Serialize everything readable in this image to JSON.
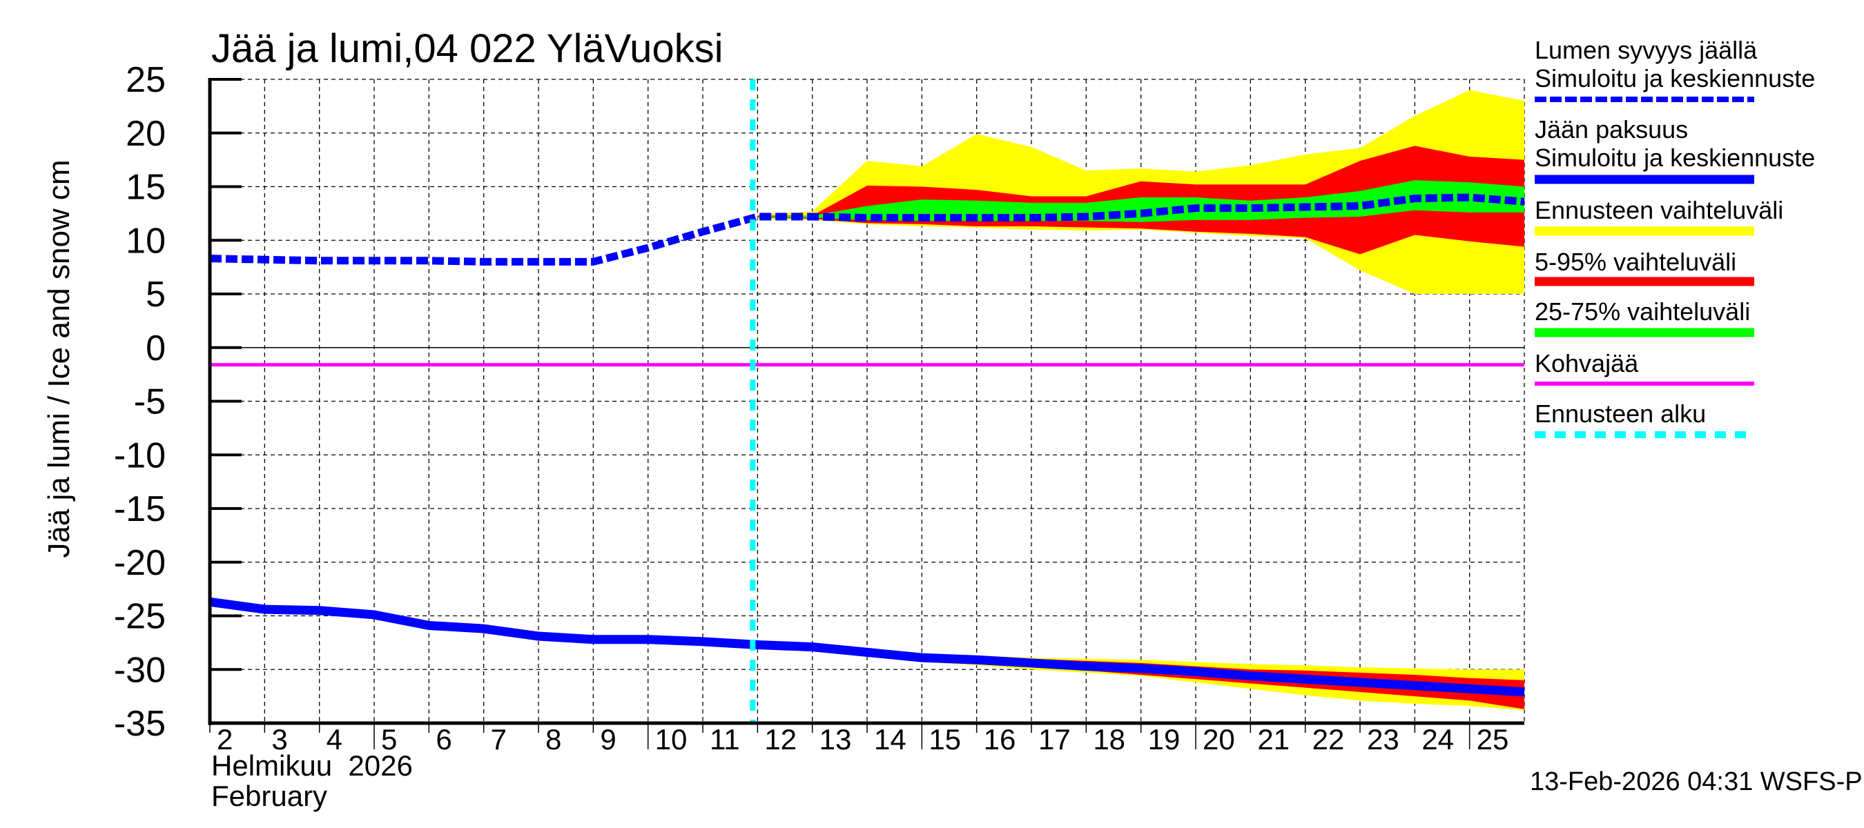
{
  "title": "Jää ja lumi,04 022 YläVuoksi",
  "timestamp": "13-Feb-2026 04:31 WSFS-P",
  "x_axis": {
    "month_fi": "Helmikuu  2026",
    "month_en": "February"
  },
  "y_axis": {
    "label": "Jää ja lumi / Ice and snow    cm"
  },
  "legend": [
    {
      "label": "Lumen syvyys jäällä",
      "sublabel": "Simuloitu ja keskiennuste",
      "color": "#0000ff",
      "style": "dashed-thick"
    },
    {
      "label": "Jään paksuus",
      "sublabel": "Simuloitu ja keskiennuste",
      "color": "#0000ff",
      "style": "solid-thick"
    },
    {
      "label": "Ennusteen vaihteluväli",
      "color": "#ffff00",
      "style": "band"
    },
    {
      "label": "5-95% vaihteluväli",
      "color": "#ff0000",
      "style": "band"
    },
    {
      "label": "25-75% vaihteluväli",
      "color": "#00ff00",
      "style": "band"
    },
    {
      "label": "Kohvajää",
      "color": "#ff00ff",
      "style": "solid-thin"
    },
    {
      "label": "Ennusteen alku",
      "color": "#00ffff",
      "style": "dashed"
    }
  ],
  "chart_data": {
    "type": "line",
    "title": "Jää ja lumi,04 022 YläVuoksi",
    "xlabel": "Helmikuu 2026 / February",
    "ylabel": "Jää ja lumi / Ice and snow cm",
    "xlim": [
      2,
      26
    ],
    "ylim": [
      -35,
      25
    ],
    "x_ticks": [
      2,
      3,
      4,
      5,
      6,
      7,
      8,
      9,
      10,
      11,
      12,
      13,
      14,
      15,
      16,
      17,
      18,
      19,
      20,
      21,
      22,
      23,
      24,
      25
    ],
    "y_ticks": [
      25,
      20,
      15,
      10,
      5,
      0,
      -5,
      -10,
      -15,
      -20,
      -25,
      -30,
      -35
    ],
    "grid": true,
    "legend_position": "right",
    "forecast_start_day": 12,
    "kohvajaa_level": -1.6,
    "snow_on_ice": {
      "x": [
        2,
        3,
        4,
        5,
        6,
        7,
        8,
        9,
        10,
        11,
        12,
        13,
        14,
        15,
        16,
        17,
        18,
        19,
        20,
        21,
        22,
        23,
        24,
        25,
        26
      ],
      "values": [
        8.3,
        8.2,
        8.1,
        8.1,
        8.1,
        8.0,
        8.0,
        8.0,
        9.3,
        10.8,
        12.2,
        12.2,
        12.1,
        12.1,
        12.1,
        12.1,
        12.2,
        12.5,
        13.0,
        13.0,
        13.1,
        13.2,
        13.9,
        14.0,
        13.6
      ]
    },
    "ice_thickness": {
      "x": [
        2,
        3,
        4,
        5,
        6,
        7,
        8,
        9,
        10,
        11,
        12,
        13,
        14,
        15,
        16,
        17,
        18,
        19,
        20,
        21,
        22,
        23,
        24,
        25,
        26
      ],
      "values": [
        -23.7,
        -24.4,
        -24.5,
        -24.9,
        -25.9,
        -26.2,
        -26.9,
        -27.2,
        -27.2,
        -27.4,
        -27.7,
        -27.9,
        -28.4,
        -28.9,
        -29.1,
        -29.4,
        -29.7,
        -29.9,
        -30.2,
        -30.6,
        -30.9,
        -31.2,
        -31.5,
        -31.8,
        -32.1
      ]
    },
    "snow_bands": {
      "x": [
        12,
        13,
        14,
        15,
        16,
        17,
        18,
        19,
        20,
        21,
        22,
        23,
        24,
        25,
        26
      ],
      "range_top": [
        12.4,
        12.7,
        17.4,
        16.9,
        19.9,
        18.7,
        16.5,
        16.7,
        16.4,
        17.0,
        18.0,
        18.6,
        21.6,
        24.0,
        23.0
      ],
      "range_bottom": [
        12.0,
        11.9,
        11.5,
        11.3,
        11.2,
        11.0,
        10.9,
        11.0,
        10.7,
        10.4,
        10.2,
        7.2,
        5.0,
        5.0,
        5.0
      ],
      "p95": [
        12.3,
        12.3,
        15.1,
        15.0,
        14.7,
        14.1,
        14.1,
        15.5,
        15.2,
        15.2,
        15.2,
        17.4,
        18.8,
        17.8,
        17.5
      ],
      "p5": [
        12.1,
        12.0,
        11.6,
        11.5,
        11.3,
        11.3,
        11.2,
        11.1,
        10.8,
        10.6,
        10.3,
        8.7,
        10.5,
        9.9,
        9.4
      ],
      "p75": [
        12.2,
        12.3,
        13.2,
        13.8,
        13.7,
        13.5,
        13.5,
        14.0,
        14.0,
        13.7,
        14.0,
        14.6,
        15.6,
        15.4,
        15.0
      ],
      "p25": [
        12.1,
        12.1,
        11.9,
        11.8,
        11.8,
        11.8,
        11.8,
        11.7,
        11.9,
        11.9,
        12.1,
        12.2,
        12.8,
        12.6,
        12.6
      ]
    },
    "ice_bands": {
      "x": [
        12,
        13,
        14,
        15,
        16,
        17,
        18,
        19,
        20,
        21,
        22,
        23,
        24,
        25,
        26
      ],
      "range_top": [
        -27.6,
        -27.8,
        -28.1,
        -28.5,
        -28.7,
        -28.9,
        -29.0,
        -29.1,
        -29.3,
        -29.5,
        -29.6,
        -29.8,
        -29.9,
        -30.0,
        -30.0
      ],
      "range_bottom": [
        -27.7,
        -28.1,
        -28.7,
        -29.3,
        -29.6,
        -30.0,
        -30.3,
        -30.6,
        -31.2,
        -31.8,
        -32.4,
        -32.9,
        -33.2,
        -33.4,
        -33.8
      ],
      "p95": [
        -27.6,
        -27.8,
        -28.2,
        -28.6,
        -28.8,
        -29.0,
        -29.2,
        -29.4,
        -29.7,
        -30.0,
        -30.1,
        -30.3,
        -30.5,
        -30.8,
        -31.0
      ],
      "p5": [
        -27.7,
        -28.0,
        -28.6,
        -29.2,
        -29.5,
        -29.8,
        -30.1,
        -30.5,
        -30.9,
        -31.3,
        -31.7,
        -32.1,
        -32.5,
        -32.9,
        -33.7
      ],
      "p75": [
        -27.6,
        -27.9,
        -28.3,
        -28.8,
        -29.0,
        -29.3,
        -29.6,
        -29.8,
        -30.1,
        -30.5,
        -30.8,
        -31.1,
        -31.4,
        -31.7,
        -31.9
      ],
      "p25": [
        -27.7,
        -27.9,
        -28.5,
        -29.0,
        -29.2,
        -29.5,
        -29.8,
        -30.0,
        -30.3,
        -30.7,
        -31.0,
        -31.3,
        -31.6,
        -31.9,
        -32.3
      ]
    }
  }
}
